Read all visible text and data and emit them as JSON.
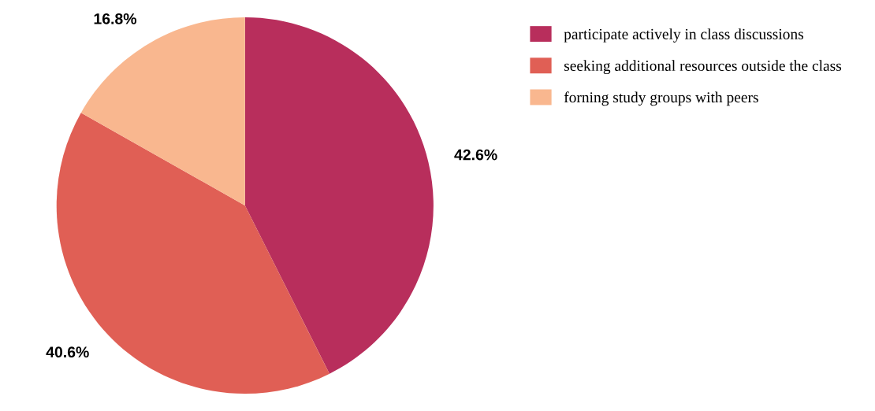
{
  "chart_data": {
    "type": "pie",
    "categories": [
      "participate actively in class discussions",
      "seeking additional resources outside the class",
      "forning study groups with peers"
    ],
    "values": [
      42.6,
      40.6,
      16.8
    ],
    "colors": [
      "#b82e5c",
      "#e05f55",
      "#f9b78f"
    ],
    "value_labels": [
      "42.6%",
      "40.6%",
      "16.8%"
    ],
    "legend": "top right"
  }
}
